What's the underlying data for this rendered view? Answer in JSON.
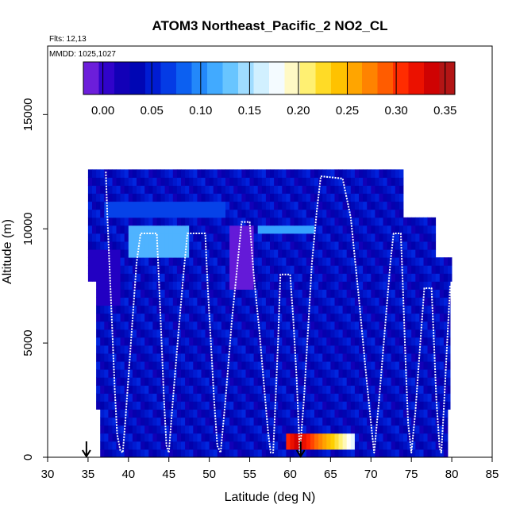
{
  "chart_data": {
    "type": "heatmap",
    "title": "ATOM3 Northeast_Pacific_2 NO2_CL",
    "flights_label": "Flts: 12,13",
    "dates_label": "MMDD: 1025,1027",
    "xlabel": "Latitude (deg N)",
    "ylabel": "Altitude (m)",
    "xlim": [
      30,
      85
    ],
    "ylim": [
      0,
      18000
    ],
    "x_ticks": [
      30,
      35,
      40,
      45,
      50,
      55,
      60,
      65,
      70,
      75,
      80,
      85
    ],
    "y_ticks": [
      0,
      5000,
      10000,
      15000
    ],
    "colorbar": {
      "min": -0.02,
      "max": 0.36,
      "ticks": [
        0.0,
        0.05,
        0.1,
        0.15,
        0.2,
        0.25,
        0.3,
        0.35
      ],
      "tick_labels": [
        "0.00",
        "0.05",
        "0.10",
        "0.15",
        "0.20",
        "0.25",
        "0.30",
        "0.35"
      ],
      "colors": [
        "#8a2be2",
        "#2a00c8",
        "#0000aa",
        "#0022dd",
        "#0a5cf0",
        "#2e9cff",
        "#6cc8ff",
        "#c6ecff",
        "#ffffff",
        "#fff27a",
        "#ffd000",
        "#ffa200",
        "#ff6a00",
        "#ff1e00",
        "#d20000",
        "#a51f1f"
      ]
    },
    "field": {
      "background": 0.04,
      "lat_range_by_altitude": [
        [
          0,
          36.5,
          79.5
        ],
        [
          2000,
          36.0,
          79.8
        ],
        [
          7500,
          35.0,
          80.0
        ],
        [
          8500,
          35.0,
          78.0
        ],
        [
          10500,
          35.0,
          74.0
        ],
        [
          12500,
          35.5,
          67.0
        ]
      ],
      "features": [
        {
          "lat": [
            59.5,
            68.0
          ],
          "alt": [
            500,
            1100
          ],
          "value": 0.2,
          "peak_lat": 61.0,
          "peak_value": 0.34
        },
        {
          "lat": [
            52.5,
            55.5
          ],
          "alt": [
            7200,
            10300
          ],
          "value": -0.01
        },
        {
          "lat": [
            40.0,
            47.5
          ],
          "alt": [
            8900,
            10200
          ],
          "value": 0.12
        },
        {
          "lat": [
            56.0,
            63.0
          ],
          "alt": [
            9700,
            10300
          ],
          "value": 0.11
        },
        {
          "lat": [
            37.0,
            52.0
          ],
          "alt": [
            10400,
            11200
          ],
          "value": 0.07
        },
        {
          "lat": [
            35.0,
            39.0
          ],
          "alt": [
            6500,
            9000
          ],
          "value": 0.01
        }
      ]
    },
    "flight_track": [
      [
        37.2,
        12500
      ],
      [
        37.4,
        10500
      ],
      [
        37.7,
        8000
      ],
      [
        38.0,
        5500
      ],
      [
        38.3,
        3000
      ],
      [
        38.6,
        1000
      ],
      [
        39.0,
        300
      ],
      [
        39.3,
        200
      ],
      [
        39.6,
        1500
      ],
      [
        40.0,
        3500
      ],
      [
        40.5,
        6000
      ],
      [
        41.0,
        8500
      ],
      [
        41.5,
        9800
      ],
      [
        43.5,
        9800
      ],
      [
        43.8,
        7500
      ],
      [
        44.1,
        5000
      ],
      [
        44.4,
        2500
      ],
      [
        44.7,
        500
      ],
      [
        45.0,
        200
      ],
      [
        45.5,
        2500
      ],
      [
        46.2,
        5500
      ],
      [
        46.8,
        8000
      ],
      [
        47.3,
        9800
      ],
      [
        49.5,
        9800
      ],
      [
        49.8,
        7500
      ],
      [
        50.2,
        5000
      ],
      [
        50.6,
        2500
      ],
      [
        51.0,
        500
      ],
      [
        51.4,
        200
      ],
      [
        52.0,
        2500
      ],
      [
        52.8,
        6000
      ],
      [
        53.5,
        8500
      ],
      [
        54.0,
        10300
      ],
      [
        55.0,
        10300
      ],
      [
        55.5,
        8000
      ],
      [
        56.2,
        5500
      ],
      [
        56.8,
        3000
      ],
      [
        57.3,
        1000
      ],
      [
        57.6,
        200
      ],
      [
        57.9,
        200
      ],
      [
        58.2,
        2500
      ],
      [
        58.5,
        5000
      ],
      [
        58.8,
        8000
      ],
      [
        60.0,
        8000
      ],
      [
        60.4,
        6000
      ],
      [
        60.8,
        3500
      ],
      [
        61.1,
        1000
      ],
      [
        61.2,
        200
      ],
      [
        61.7,
        2500
      ],
      [
        62.2,
        5500
      ],
      [
        62.7,
        8500
      ],
      [
        63.3,
        10800
      ],
      [
        63.8,
        12300
      ],
      [
        66.5,
        12200
      ],
      [
        67.5,
        10500
      ],
      [
        68.5,
        7000
      ],
      [
        69.3,
        4000
      ],
      [
        70.0,
        1500
      ],
      [
        70.4,
        200
      ],
      [
        71.0,
        2500
      ],
      [
        71.7,
        5500
      ],
      [
        72.4,
        8500
      ],
      [
        72.8,
        9800
      ],
      [
        73.7,
        9800
      ],
      [
        74.0,
        7000
      ],
      [
        74.3,
        4000
      ],
      [
        74.6,
        1500
      ],
      [
        75.0,
        200
      ],
      [
        75.5,
        2000
      ],
      [
        76.0,
        4500
      ],
      [
        76.6,
        7400
      ],
      [
        77.5,
        7400
      ],
      [
        77.8,
        5000
      ],
      [
        78.1,
        2500
      ],
      [
        78.5,
        400
      ],
      [
        78.7,
        200
      ],
      [
        79.0,
        2000
      ],
      [
        79.5,
        5500
      ],
      [
        79.8,
        7500
      ]
    ],
    "arrows": [
      34.8,
      61.3
    ]
  }
}
